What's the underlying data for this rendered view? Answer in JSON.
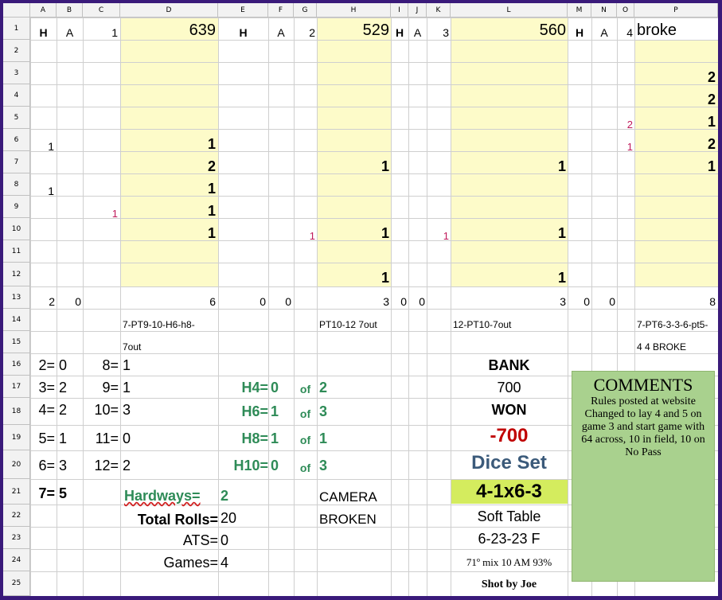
{
  "columns": [
    "A",
    "B",
    "C",
    "D",
    "E",
    "F",
    "G",
    "H",
    "I",
    "J",
    "K",
    "L",
    "M",
    "N",
    "O",
    "P"
  ],
  "rows": [
    "1",
    "2",
    "3",
    "4",
    "5",
    "6",
    "7",
    "8",
    "9",
    "10",
    "11",
    "12",
    "13",
    "14",
    "15",
    "16",
    "17",
    "18",
    "19",
    "20",
    "21",
    "22",
    "23",
    "24",
    "25"
  ],
  "games": [
    {
      "h": "H",
      "a": "A",
      "num": "1",
      "rolls": "639",
      "h_count": "2",
      "a_count": "0",
      "total": "6",
      "summary1": "7-PT9-10-H6-h8-",
      "summary2": "7out"
    },
    {
      "h": "H",
      "a": "A",
      "num": "2",
      "rolls": "529",
      "h_count": "0",
      "a_count": "0",
      "total": "3",
      "summary1": "PT10-12 7out",
      "summary2": ""
    },
    {
      "h": "H",
      "a": "A",
      "num": "3",
      "rolls": "560",
      "h_count": "0",
      "a_count": "0",
      "total": "3",
      "summary1": "12-PT10-7out",
      "summary2": ""
    },
    {
      "h": "H",
      "a": "A",
      "num": "4",
      "rolls": "broke",
      "total": "8",
      "summary1": "7-PT6-3-3-6-pt5-",
      "summary2": "4 4 BROKE"
    }
  ],
  "col_a_values": {
    "r6": "1",
    "r8": "1"
  },
  "col_c_values": {
    "r9": "1"
  },
  "col_d_values": {
    "r6": "1",
    "r7": "2",
    "r8": "1",
    "r9": "1",
    "r10": "1"
  },
  "col_g_values": {
    "r10": "1"
  },
  "col_h_values": {
    "r7": "1",
    "r10": "1",
    "r12": "1"
  },
  "col_k_values": {
    "r10": "1"
  },
  "col_l_values": {
    "r7": "1",
    "r10": "1",
    "r12": "1"
  },
  "col_o_values": {
    "r5": "2",
    "r6": "1"
  },
  "col_p_values": {
    "r3": "2",
    "r4": "2",
    "r5": "1",
    "r6": "2",
    "r7": "1"
  },
  "number_counts": [
    {
      "label": "2=",
      "value": "0",
      "label2": "8=",
      "value2": "1"
    },
    {
      "label": "3=",
      "value": "2",
      "label2": "9=",
      "value2": "1"
    },
    {
      "label": "4=",
      "value": "2",
      "label2": "10=",
      "value2": "3"
    },
    {
      "label": "5=",
      "value": "1",
      "label2": "11=",
      "value2": "0"
    },
    {
      "label": "6=",
      "value": "3",
      "label2": "12=",
      "value2": "2"
    },
    {
      "label": "7=",
      "value": "5"
    }
  ],
  "hardways": [
    {
      "label": "H4=",
      "value": "0",
      "of": "of",
      "total": "2"
    },
    {
      "label": "H6=",
      "value": "1",
      "of": "of",
      "total": "3"
    },
    {
      "label": "H8=",
      "value": "1",
      "of": "of",
      "total": "1"
    },
    {
      "label": "H10=",
      "value": "0",
      "of": "of",
      "total": "3"
    }
  ],
  "hardways_total": {
    "label": "Hardways=",
    "value": "2"
  },
  "totals": {
    "total_rolls_label": "Total Rolls=",
    "total_rolls": "20",
    "ats_label": "ATS=",
    "ats": "0",
    "games_label": "Games=",
    "games": "4"
  },
  "camera": {
    "line1": "CAMERA",
    "line2": "BROKEN"
  },
  "bank": {
    "bank_label": "BANK",
    "bank_value": "700",
    "won_label": "WON",
    "won_value": "-700",
    "dice_set_label": "Dice Set",
    "dice_set_value": "4-1x6-3",
    "table": "Soft Table",
    "date": "6-23-23 F",
    "conditions": "71º mix 10 AM  93%",
    "shooter": "Shot by Joe"
  },
  "comments": {
    "title": "COMMENTS",
    "text": "Rules posted at website Changed to lay 4 and 5 on game 3 and start game with 64 across, 10 in field, 10 on No Pass"
  },
  "colors": {
    "yellow": "#fdfbc9",
    "green": "#2e8b57",
    "red": "#c00000",
    "blue_title": "#2f4f7f",
    "dice_set_bg": "#d4ec5e",
    "comments_bg": "#a9d18e",
    "frame": "#3a1a7a"
  }
}
